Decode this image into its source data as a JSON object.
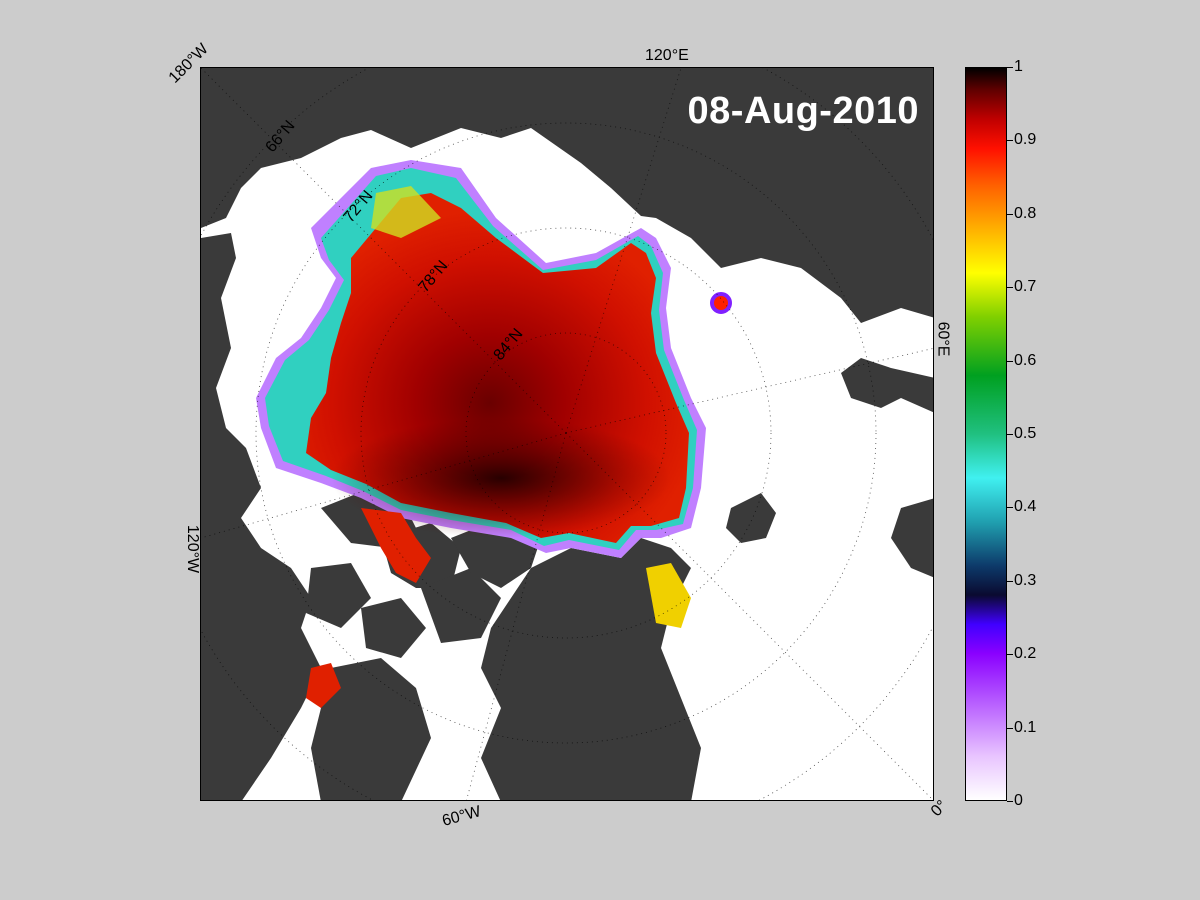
{
  "map": {
    "date": "08-Aug-2010",
    "labels": {
      "lon_180w": "180°W",
      "lon_120e": "120°E",
      "lon_60e": "60°E",
      "lon_0": "0°",
      "lon_60w": "60°W",
      "lon_120w": "120°W",
      "lat_66n": "66°N",
      "lat_72n": "72°N",
      "lat_78n": "78°N",
      "lat_84n": "84°N"
    },
    "colors": {
      "land": "#3a3a3a",
      "ocean": "#ffffff",
      "no_data": "#7f7f7f",
      "background": "#cccccc"
    }
  },
  "colorbar": {
    "ticks": [
      "1",
      "0.9",
      "0.8",
      "0.7",
      "0.6",
      "0.5",
      "0.4",
      "0.3",
      "0.2",
      "0.1",
      "0"
    ],
    "min": 0,
    "max": 1
  }
}
